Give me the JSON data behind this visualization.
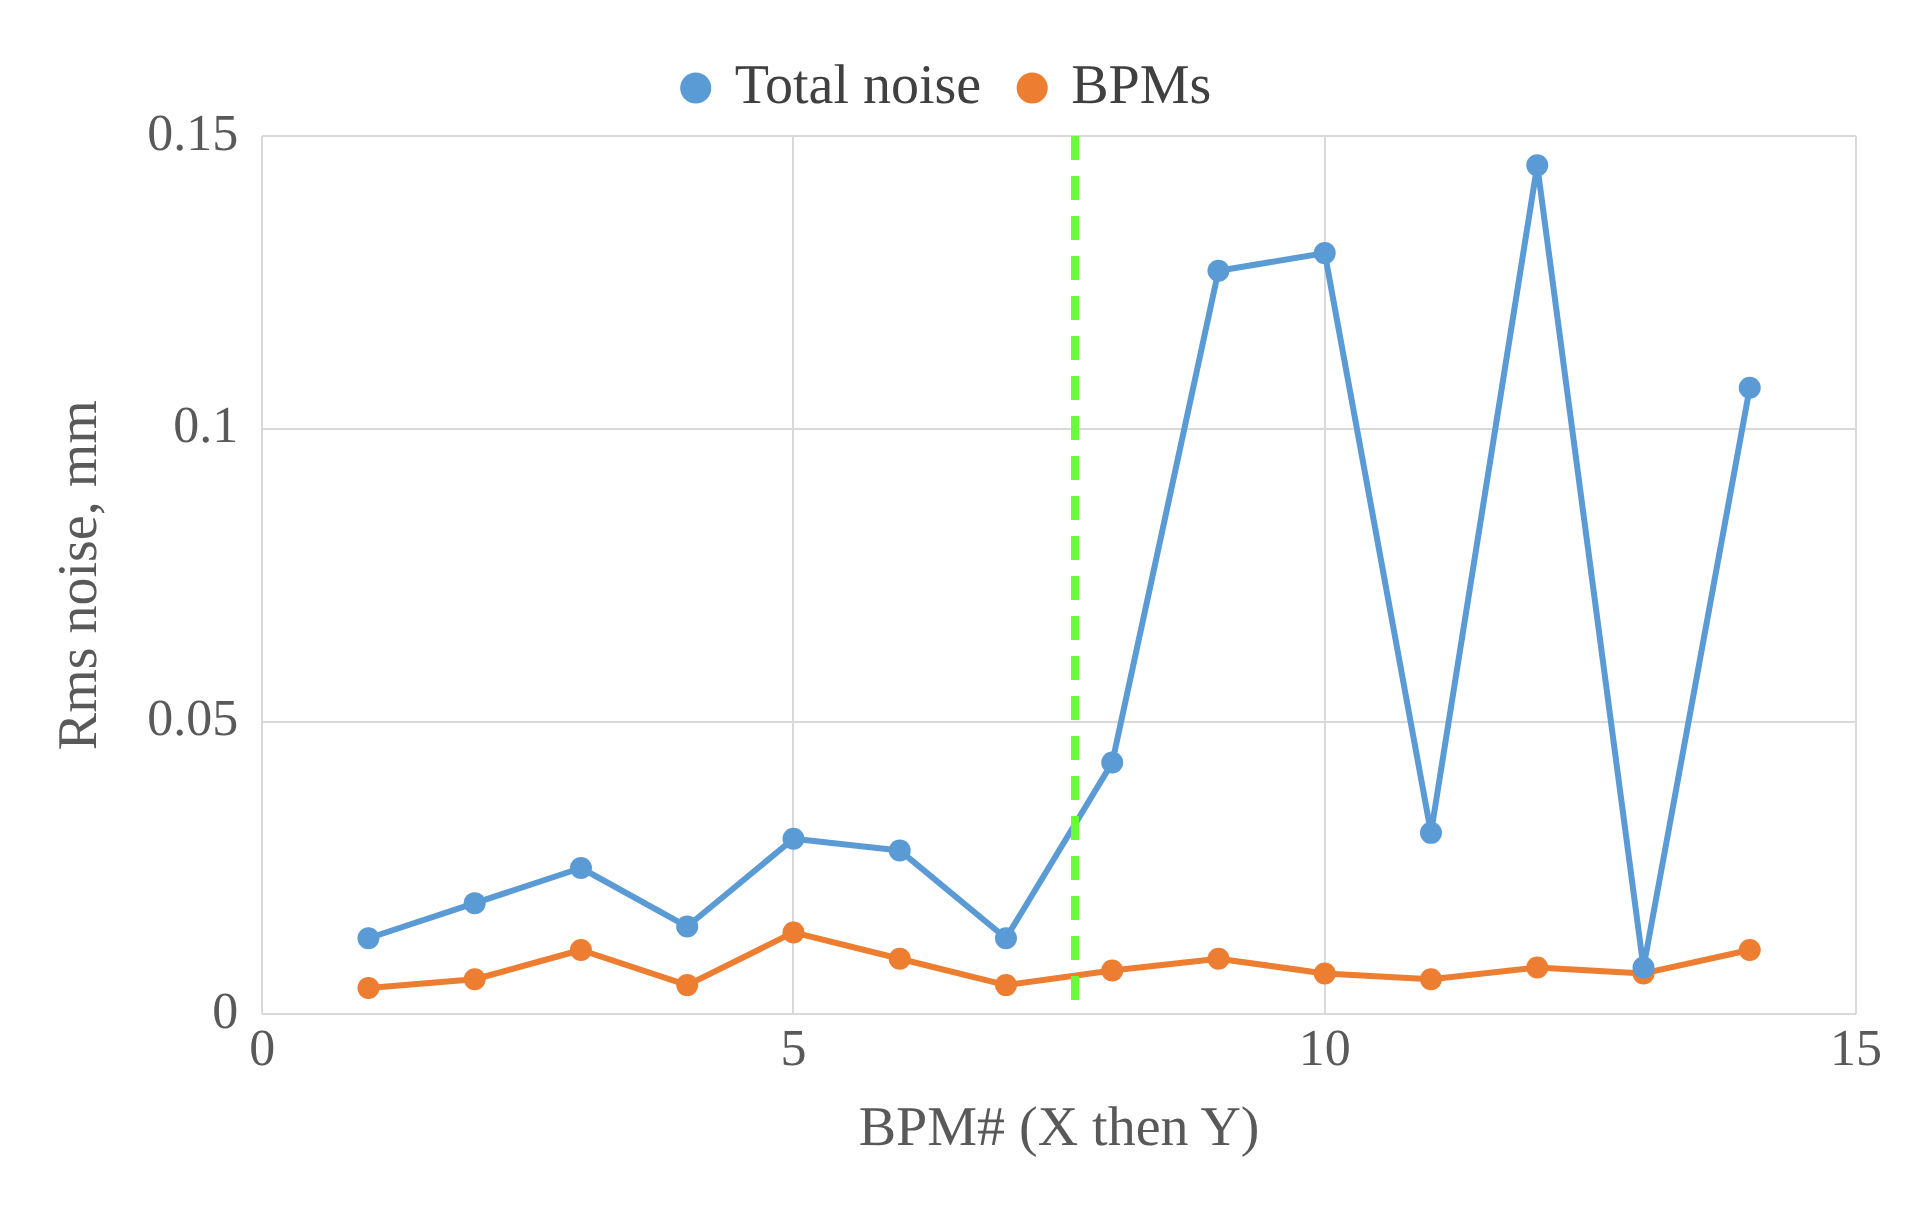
{
  "chart_data": {
    "type": "line",
    "xlabel": "BPM# (X then Y)",
    "ylabel": "Rms noise, mm",
    "x": [
      1,
      2,
      3,
      4,
      5,
      6,
      7,
      8,
      9,
      10,
      11,
      12,
      13,
      14
    ],
    "series": [
      {
        "name": "Total noise",
        "color": "#5b9bd5",
        "values": [
          0.013,
          0.019,
          0.025,
          0.015,
          0.03,
          0.028,
          0.013,
          0.043,
          0.127,
          0.13,
          0.031,
          0.145,
          0.008,
          0.107
        ]
      },
      {
        "name": "BPMs",
        "color": "#ed7d31",
        "values": [
          0.0045,
          0.006,
          0.011,
          0.005,
          0.014,
          0.0095,
          0.005,
          0.0075,
          0.0095,
          0.007,
          0.006,
          0.008,
          0.007,
          0.011
        ]
      }
    ],
    "xlim": [
      0,
      15
    ],
    "xticks": [
      0,
      5,
      10,
      15
    ],
    "ylim": [
      0,
      0.15
    ],
    "yticks": [
      0,
      0.05,
      0.1,
      0.15
    ],
    "ref_lines": [
      {
        "axis": "x",
        "value": 7.65,
        "color": "#66ff33",
        "line_style": "dashed"
      }
    ],
    "grid": true,
    "legend": "top",
    "marker": "circle",
    "line_style": "solid"
  }
}
